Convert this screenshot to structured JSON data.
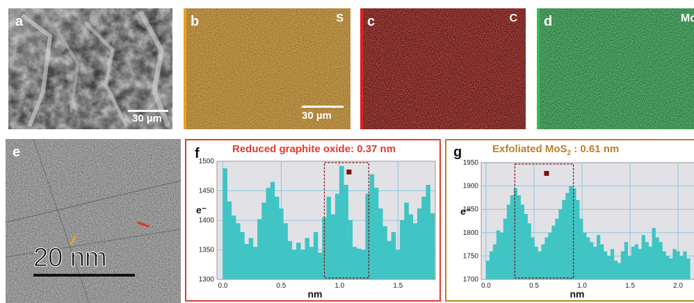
{
  "panels": {
    "a": {
      "label": "a",
      "scale": "30 µm"
    },
    "b": {
      "label": "b",
      "element": "S",
      "scale": "30 µm",
      "color": "#c8902e"
    },
    "c": {
      "label": "c",
      "element": "C",
      "color": "#b4201e"
    },
    "d": {
      "label": "d",
      "element": "Mo",
      "color": "#2a9e48"
    },
    "e": {
      "label": "e",
      "scale": "20 nm",
      "mark_colors": [
        "#f0a020",
        "#e03020"
      ]
    },
    "f": {
      "label": "f"
    },
    "g": {
      "label": "g"
    }
  },
  "chart_data": [
    {
      "type": "bar",
      "title": "Reduced graphite oxide: 0.37 nm",
      "title_color": "#e03a30",
      "border_color": "#e03a30",
      "bar_color": "#40c4c4",
      "xlabel": "nm",
      "ylabel": "e⁻",
      "xlim": [
        -0.05,
        1.82
      ],
      "ylim": [
        1300,
        1500
      ],
      "xticks": [
        "0.0",
        "0.5",
        "1.0",
        "1.5"
      ],
      "xtick_values": [
        0.0,
        0.5,
        1.0,
        1.5
      ],
      "yticks": [
        "1300",
        "1350",
        "1400",
        "1450",
        "1500"
      ],
      "ytick_values": [
        1300,
        1350,
        1400,
        1450,
        1500
      ],
      "grid": true,
      "bin_width": 0.037,
      "highlight": {
        "x0": 0.87,
        "x1": 1.25
      },
      "x": [
        0.0,
        0.037,
        0.074,
        0.111,
        0.148,
        0.185,
        0.222,
        0.259,
        0.296,
        0.333,
        0.37,
        0.407,
        0.444,
        0.481,
        0.518,
        0.555,
        0.592,
        0.629,
        0.666,
        0.703,
        0.74,
        0.777,
        0.814,
        0.851,
        0.888,
        0.925,
        0.962,
        0.999,
        1.036,
        1.073,
        1.11,
        1.147,
        1.184,
        1.221,
        1.258,
        1.295,
        1.332,
        1.369,
        1.406,
        1.443,
        1.48,
        1.517,
        1.554,
        1.591,
        1.628,
        1.665,
        1.702,
        1.739,
        1.776
      ],
      "values": [
        1488,
        1432,
        1408,
        1395,
        1380,
        1360,
        1370,
        1355,
        1402,
        1430,
        1455,
        1465,
        1440,
        1420,
        1395,
        1365,
        1350,
        1362,
        1350,
        1370,
        1355,
        1380,
        1345,
        1405,
        1440,
        1410,
        1445,
        1492,
        1460,
        1400,
        1355,
        1352,
        1350,
        1445,
        1478,
        1455,
        1420,
        1390,
        1365,
        1380,
        1350,
        1400,
        1430,
        1410,
        1395,
        1420,
        1440,
        1460,
        1412
      ]
    },
    {
      "type": "bar",
      "title": "Exfoliated MoS",
      "title_sub": "2",
      "title_rest": " : 0.61 nm",
      "title_color": "#b8802a",
      "border_color": "#b8802a",
      "bar_color": "#40c4c4",
      "xlabel": "nm",
      "ylabel": "e⁻",
      "xlim": [
        -0.05,
        2.18
      ],
      "ylim": [
        1700,
        1950
      ],
      "xticks": [
        "0.0",
        "0.5",
        "1.0",
        "1.5",
        "2.0"
      ],
      "xtick_values": [
        0.0,
        0.5,
        1.0,
        1.5,
        2.0
      ],
      "yticks": [
        "1700",
        "1750",
        "1800",
        "1850",
        "1900",
        "1950"
      ],
      "ytick_values": [
        1700,
        1750,
        1800,
        1850,
        1900,
        1950
      ],
      "grid": true,
      "bin_width": 0.036,
      "highlight": {
        "x0": 0.3,
        "x1": 0.91
      },
      "x": [
        0.0,
        0.036,
        0.072,
        0.108,
        0.144,
        0.18,
        0.216,
        0.252,
        0.288,
        0.324,
        0.36,
        0.396,
        0.432,
        0.468,
        0.504,
        0.54,
        0.576,
        0.612,
        0.648,
        0.684,
        0.72,
        0.756,
        0.792,
        0.828,
        0.864,
        0.9,
        0.936,
        0.972,
        1.008,
        1.044,
        1.08,
        1.116,
        1.152,
        1.188,
        1.224,
        1.26,
        1.296,
        1.332,
        1.368,
        1.404,
        1.44,
        1.476,
        1.512,
        1.548,
        1.584,
        1.62,
        1.656,
        1.692,
        1.728,
        1.764,
        1.8,
        1.836,
        1.872,
        1.908,
        1.944,
        1.98,
        2.016,
        2.052,
        2.088
      ],
      "values": [
        1740,
        1760,
        1775,
        1805,
        1800,
        1830,
        1860,
        1880,
        1895,
        1880,
        1860,
        1840,
        1820,
        1790,
        1770,
        1760,
        1775,
        1790,
        1800,
        1815,
        1830,
        1850,
        1870,
        1885,
        1900,
        1895,
        1870,
        1830,
        1800,
        1790,
        1780,
        1770,
        1795,
        1775,
        1760,
        1750,
        1765,
        1740,
        1735,
        1760,
        1780,
        1750,
        1770,
        1775,
        1765,
        1795,
        1780,
        1770,
        1810,
        1790,
        1780,
        1760,
        1750,
        1745,
        1765,
        1760,
        1750,
        1760,
        1745
      ]
    }
  ]
}
